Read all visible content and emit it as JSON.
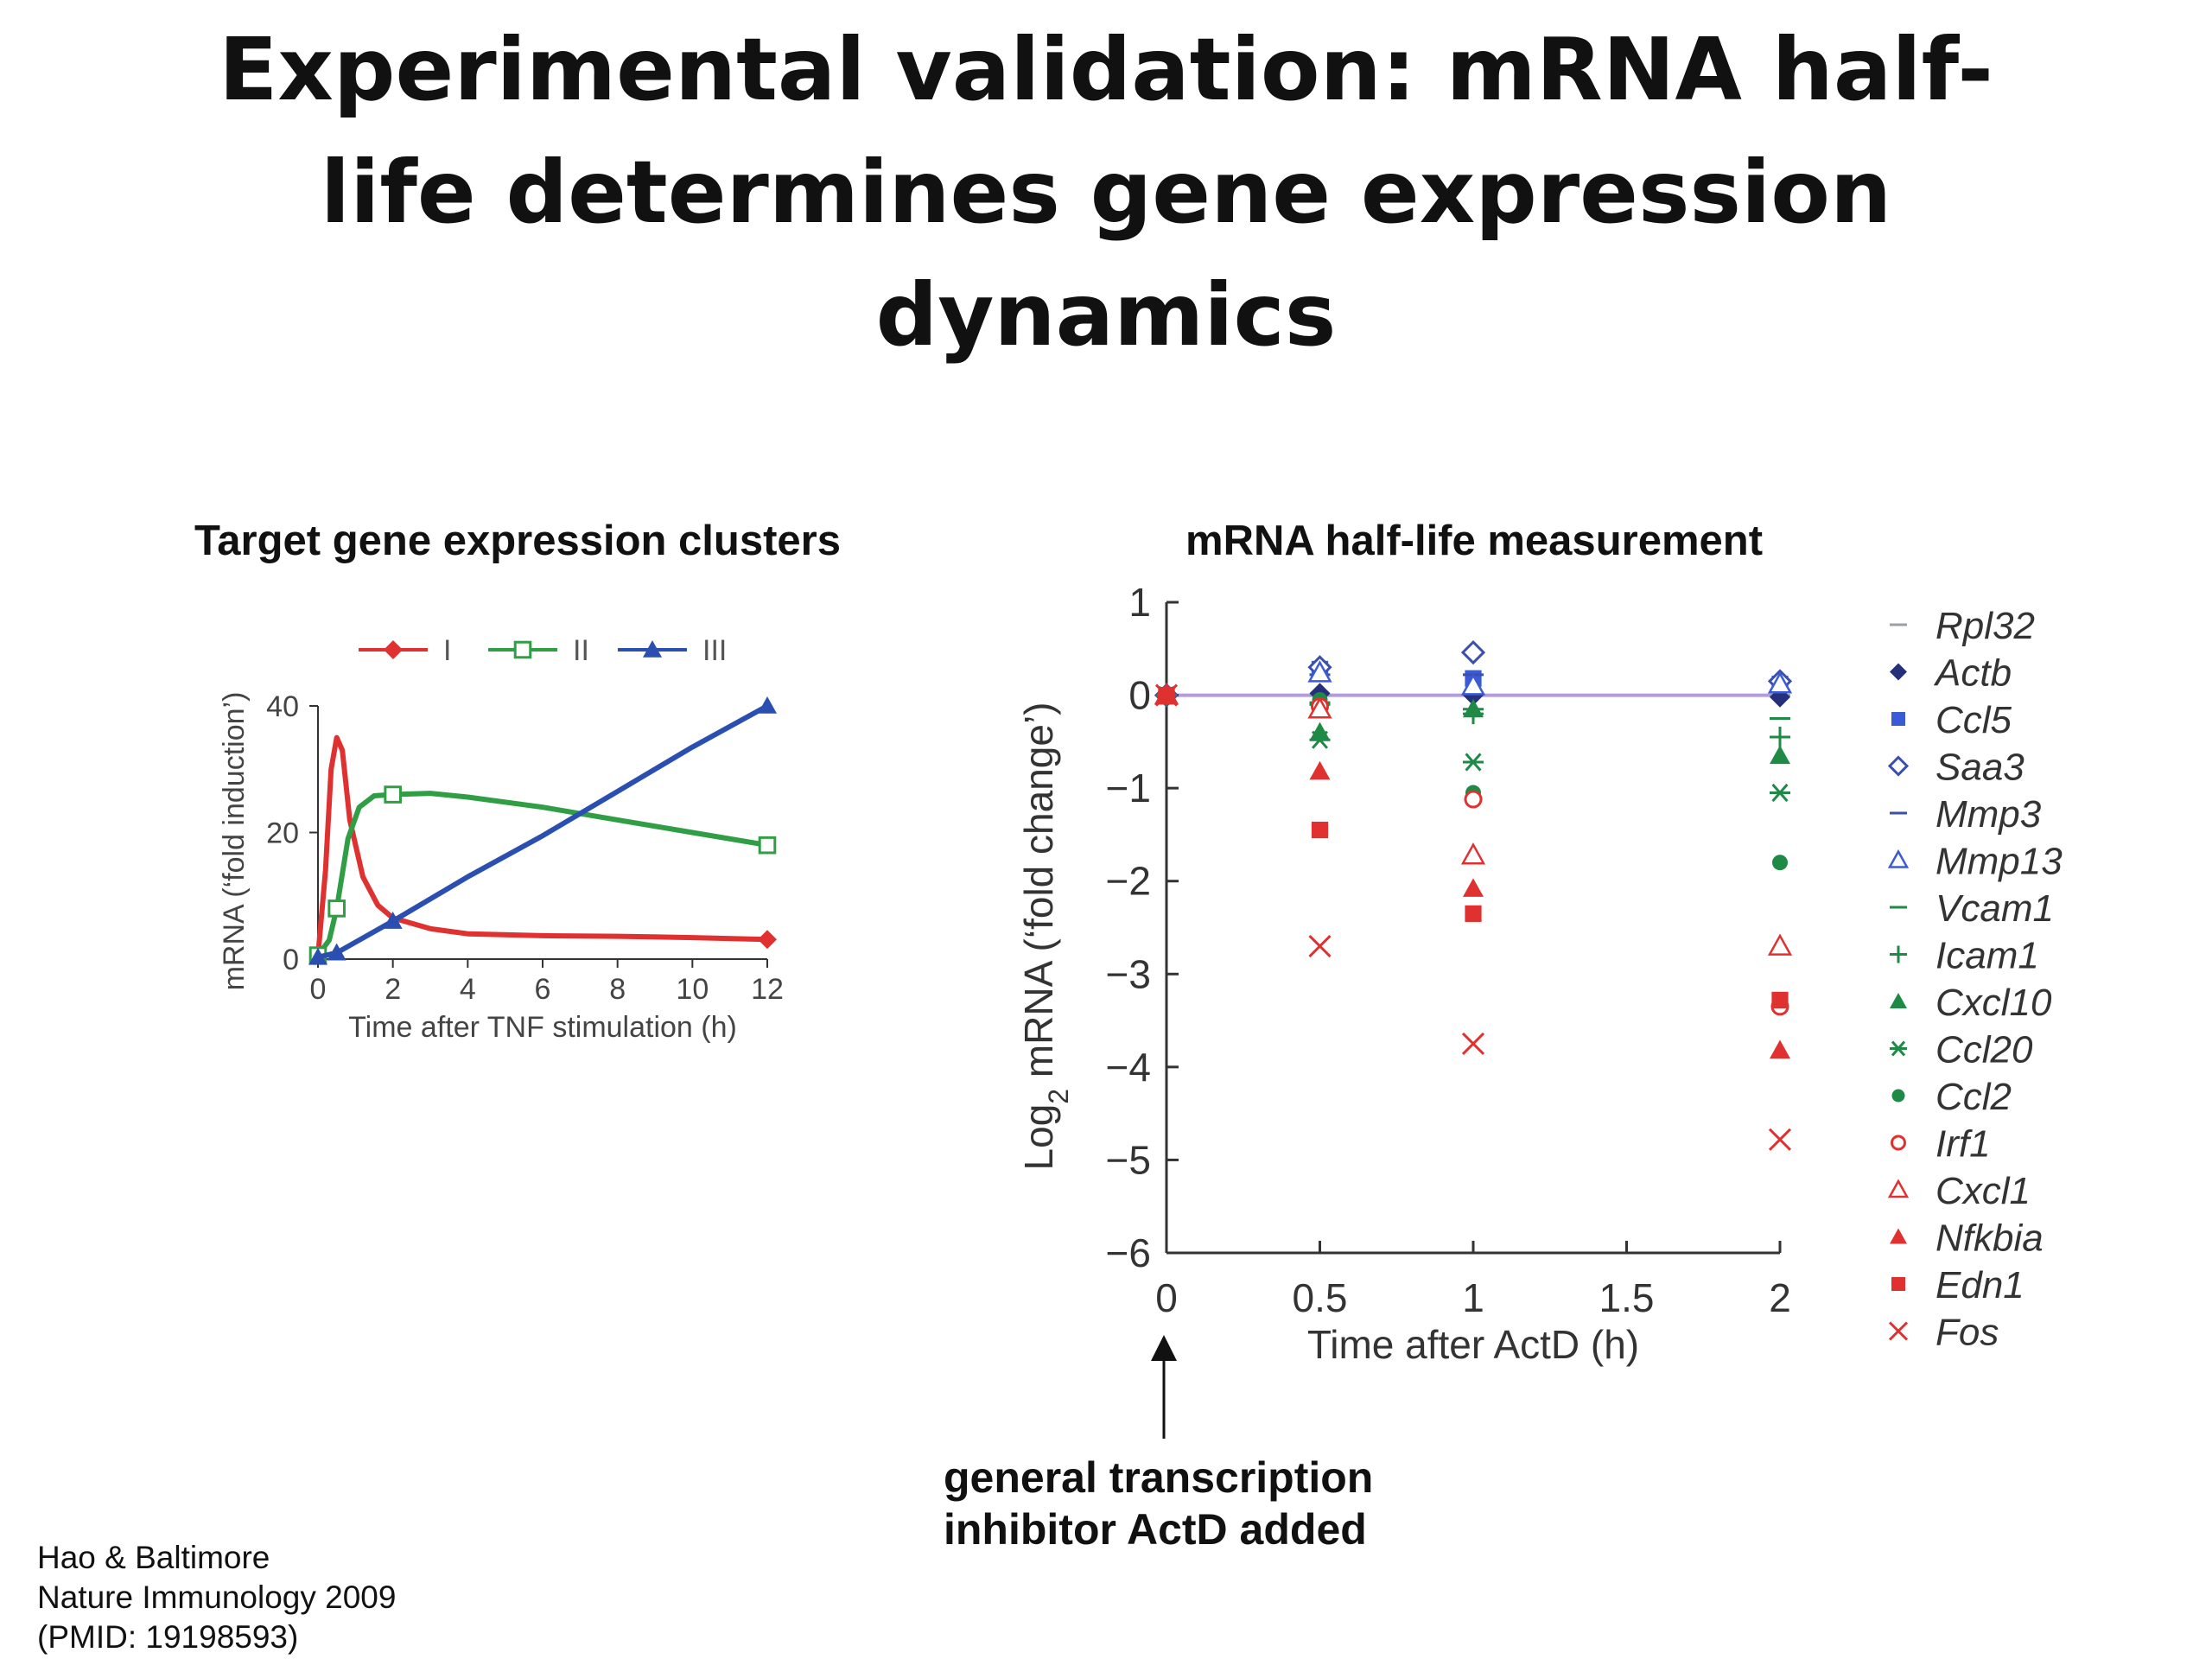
{
  "slide": {
    "title_lines": [
      "Experimental validation: mRNA half-",
      "life determines gene expression",
      "dynamics"
    ]
  },
  "annotation": {
    "lines": [
      "general transcription",
      "inhibitor ActD added"
    ]
  },
  "citation": {
    "lines": [
      "Hao & Baltimore",
      "Nature Immunology 2009",
      "(PMID: 19198593)"
    ]
  },
  "chart_data": [
    {
      "type": "line",
      "panel_title": "Target gene expression clusters",
      "xlabel": "Time after TNF stimulation (h)",
      "ylabel": "mRNA (‘fold induction’)",
      "xlim": [
        0,
        12
      ],
      "ylim": [
        0,
        40
      ],
      "xticks": [
        0,
        2,
        4,
        6,
        8,
        10,
        12
      ],
      "yticks": [
        0,
        20,
        40
      ],
      "legend_position": "top",
      "series": [
        {
          "name": "I",
          "color": "#e03131",
          "marker": "filled-diamond",
          "curve": [
            [
              0,
              0.5
            ],
            [
              0.2,
              14
            ],
            [
              0.35,
              30
            ],
            [
              0.5,
              35
            ],
            [
              0.65,
              33
            ],
            [
              0.85,
              22
            ],
            [
              1.2,
              13
            ],
            [
              1.6,
              8.5
            ],
            [
              2,
              6.5
            ],
            [
              3,
              4.8
            ],
            [
              4,
              4
            ],
            [
              6,
              3.7
            ],
            [
              8,
              3.6
            ],
            [
              10,
              3.4
            ],
            [
              12,
              3.1
            ]
          ],
          "points": [
            [
              12,
              3.1
            ]
          ]
        },
        {
          "name": "II",
          "color": "#2f9e44",
          "marker": "open-square",
          "curve": [
            [
              0,
              0.6
            ],
            [
              0.3,
              3
            ],
            [
              0.5,
              8
            ],
            [
              0.8,
              19
            ],
            [
              1.1,
              24
            ],
            [
              1.5,
              25.8
            ],
            [
              2,
              26
            ],
            [
              3,
              26.2
            ],
            [
              4,
              25.6
            ],
            [
              6,
              24
            ],
            [
              8,
              22
            ],
            [
              10,
              20
            ],
            [
              12,
              18
            ]
          ],
          "points": [
            [
              0,
              0.6
            ],
            [
              0.5,
              8
            ],
            [
              2,
              26
            ],
            [
              12,
              18
            ]
          ]
        },
        {
          "name": "III",
          "color": "#2b4fb0",
          "marker": "filled-triangle",
          "curve": [
            [
              0,
              0.3
            ],
            [
              0.5,
              1
            ],
            [
              2,
              6
            ],
            [
              4,
              13
            ],
            [
              6,
              19.5
            ],
            [
              8,
              26.5
            ],
            [
              10,
              33.5
            ],
            [
              12,
              40
            ]
          ],
          "points": [
            [
              0,
              0.3
            ],
            [
              0.5,
              1
            ],
            [
              2,
              6
            ],
            [
              12,
              40
            ]
          ]
        }
      ]
    },
    {
      "type": "scatter",
      "panel_title": "mRNA half-life measurement",
      "xlabel": "Time after ActD (h)",
      "ylabel_main": "Log",
      "ylabel_sub": "2",
      "ylabel_rest": " mRNA (‘fold change’)",
      "xlim": [
        0,
        2
      ],
      "ylim": [
        -6,
        1
      ],
      "xticks": [
        "0",
        "0.5",
        "1",
        "1.5",
        "2"
      ],
      "yticks": [
        "1",
        "0",
        "−1",
        "−2",
        "−3",
        "−4",
        "−5",
        "−6"
      ],
      "reference_line": {
        "y": 0,
        "color": "#b49bdf"
      },
      "legend_position": "right",
      "series": [
        {
          "name": "Rpl32",
          "color": "#9aa0a8",
          "marker": "dash",
          "points": [
            [
              0,
              0
            ],
            [
              0.5,
              0
            ],
            [
              1,
              0
            ],
            [
              2,
              0
            ]
          ]
        },
        {
          "name": "Actb",
          "color": "#24307a",
          "marker": "filled-diamond",
          "points": [
            [
              0,
              0
            ],
            [
              0.5,
              0.02
            ],
            [
              1,
              0
            ],
            [
              2,
              -0.02
            ]
          ]
        },
        {
          "name": "Ccl5",
          "color": "#3b5bd6",
          "marker": "filled-square",
          "points": [
            [
              0,
              0
            ],
            [
              0.5,
              0.28
            ],
            [
              1,
              0.18
            ],
            [
              2,
              0.12
            ]
          ]
        },
        {
          "name": "Saa3",
          "color": "#3b4fae",
          "marker": "open-diamond",
          "points": [
            [
              0,
              0
            ],
            [
              0.5,
              0.3
            ],
            [
              1,
              0.46
            ],
            [
              2,
              0.15
            ]
          ]
        },
        {
          "name": "Mmp3",
          "color": "#3b4fae",
          "marker": "dash",
          "points": [
            [
              0,
              0
            ],
            [
              0.5,
              0.22
            ],
            [
              1,
              0.22
            ],
            [
              2,
              0.05
            ]
          ]
        },
        {
          "name": "Mmp13",
          "color": "#3b5bd6",
          "marker": "open-triangle",
          "points": [
            [
              0,
              0
            ],
            [
              0.5,
              0.24
            ],
            [
              1,
              0.1
            ],
            [
              2,
              0.12
            ]
          ]
        },
        {
          "name": "Vcam1",
          "color": "#1e8a46",
          "marker": "dash",
          "points": [
            [
              0,
              0
            ],
            [
              0.5,
              -0.1
            ],
            [
              1,
              -0.15
            ],
            [
              2,
              -0.25
            ]
          ]
        },
        {
          "name": "Icam1",
          "color": "#1e8a46",
          "marker": "plus",
          "points": [
            [
              0,
              0
            ],
            [
              0.5,
              -0.08
            ],
            [
              1,
              -0.2
            ],
            [
              2,
              -0.45
            ]
          ]
        },
        {
          "name": "Cxcl10",
          "color": "#1e8a46",
          "marker": "filled-triangle",
          "points": [
            [
              0,
              0
            ],
            [
              0.5,
              -0.4
            ],
            [
              1,
              -0.15
            ],
            [
              2,
              -0.65
            ]
          ]
        },
        {
          "name": "Ccl20",
          "color": "#1e8a46",
          "marker": "asterisk",
          "points": [
            [
              0,
              0
            ],
            [
              0.5,
              -0.48
            ],
            [
              1,
              -0.72
            ],
            [
              2,
              -1.05
            ]
          ]
        },
        {
          "name": "Ccl2",
          "color": "#1e8a46",
          "marker": "filled-circle",
          "points": [
            [
              0,
              0
            ],
            [
              0.5,
              -0.05
            ],
            [
              1,
              -1.05
            ],
            [
              2,
              -1.8
            ]
          ]
        },
        {
          "name": "Irf1",
          "color": "#e03131",
          "marker": "open-circle",
          "points": [
            [
              0,
              0
            ],
            [
              0.5,
              -0.12
            ],
            [
              1,
              -1.12
            ],
            [
              2,
              -3.35
            ]
          ]
        },
        {
          "name": "Cxcl1",
          "color": "#e03131",
          "marker": "open-triangle",
          "points": [
            [
              0,
              0
            ],
            [
              0.5,
              -0.15
            ],
            [
              1,
              -1.72
            ],
            [
              2,
              -2.7
            ]
          ]
        },
        {
          "name": "Nfkbia",
          "color": "#e03131",
          "marker": "filled-triangle",
          "points": [
            [
              0,
              0
            ],
            [
              0.5,
              -0.82
            ],
            [
              1,
              -2.08
            ],
            [
              2,
              -3.82
            ]
          ]
        },
        {
          "name": "Edn1",
          "color": "#e03131",
          "marker": "filled-square",
          "points": [
            [
              0,
              0
            ],
            [
              0.5,
              -1.45
            ],
            [
              1,
              -2.35
            ],
            [
              2,
              -3.28
            ]
          ]
        },
        {
          "name": "Fos",
          "color": "#e03131",
          "marker": "cross",
          "points": [
            [
              0,
              0
            ],
            [
              0.5,
              -2.7
            ],
            [
              1,
              -3.75
            ],
            [
              2,
              -4.78
            ]
          ]
        }
      ]
    }
  ]
}
